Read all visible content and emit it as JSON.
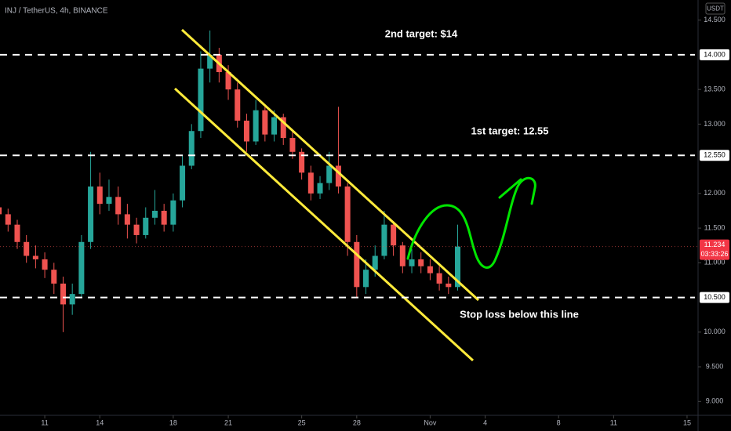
{
  "chart_data": {
    "type": "candlestick",
    "title": "INJ / TetherUS, 4h, BINANCE",
    "currency": "USDT",
    "x": [
      -2.5,
      -2,
      -1.5,
      -1,
      -0.5,
      0,
      0.5,
      1,
      1.5,
      2,
      2.5,
      3,
      3.5,
      4,
      4.5,
      5,
      5.5,
      6,
      6.5,
      7,
      7.5,
      8,
      8.5,
      9,
      9.5,
      10,
      10.5,
      11,
      11.5,
      12,
      12.5,
      13,
      13.5,
      14,
      14.5,
      15,
      15.5,
      16,
      16.5,
      17,
      17.5,
      18,
      18.5,
      19,
      19.5,
      20,
      20.5,
      21,
      21.5,
      22,
      22.5
    ],
    "open": [
      11.8,
      11.7,
      11.55,
      11.3,
      11.1,
      11.05,
      10.9,
      10.7,
      10.4,
      10.55,
      11.3,
      12.1,
      11.85,
      11.95,
      11.7,
      11.55,
      11.4,
      11.65,
      11.75,
      11.55,
      11.9,
      12.4,
      12.9,
      13.8,
      14,
      13.75,
      13.5,
      13.05,
      12.75,
      13.2,
      12.85,
      13.1,
      12.8,
      12.6,
      12.3,
      12,
      12.15,
      12.4,
      12.1,
      11.3,
      10.65,
      10.9,
      11.1,
      11.55,
      11.25,
      10.95,
      11.05,
      10.95,
      10.85,
      10.7,
      10.65
    ],
    "high": [
      11.9,
      11.78,
      11.62,
      11.4,
      11.25,
      11.15,
      11,
      10.8,
      10.7,
      11.4,
      12.6,
      12.3,
      12.2,
      12.1,
      11.85,
      11.65,
      11.8,
      12.05,
      11.85,
      12,
      12.55,
      13,
      14.05,
      14.35,
      14.1,
      13.85,
      13.6,
      13.15,
      13.35,
      13.25,
      13.2,
      13.15,
      12.9,
      12.65,
      12.4,
      12.25,
      12.6,
      13.25,
      12.15,
      11.4,
      11.05,
      11.25,
      11.75,
      11.6,
      11.3,
      11.2,
      11.15,
      11.05,
      10.95,
      10.8,
      11.55
    ],
    "low": [
      11.62,
      11.45,
      11.2,
      11,
      10.92,
      10.78,
      10.55,
      10,
      10.25,
      10.5,
      11.2,
      11.7,
      11.75,
      11.55,
      11.35,
      11.28,
      11.35,
      11.55,
      11.45,
      11.45,
      11.8,
      12.35,
      12.8,
      13.6,
      13.6,
      13.35,
      12.95,
      12.6,
      12.7,
      12.75,
      12.75,
      12.7,
      12.5,
      12.2,
      11.9,
      11.92,
      12.05,
      12,
      11.1,
      10.5,
      10.55,
      10.8,
      11.05,
      11.1,
      10.85,
      10.85,
      10.85,
      10.75,
      10.6,
      10.55,
      10.6
    ],
    "close": [
      11.7,
      11.55,
      11.3,
      11.1,
      11.05,
      10.9,
      10.7,
      10.4,
      10.55,
      11.3,
      12.1,
      11.85,
      11.95,
      11.7,
      11.55,
      11.4,
      11.65,
      11.75,
      11.55,
      11.9,
      12.4,
      12.9,
      13.8,
      14,
      13.75,
      13.5,
      13.05,
      12.75,
      13.2,
      12.85,
      13.1,
      12.8,
      12.6,
      12.3,
      12,
      12.15,
      12.4,
      12.1,
      11.3,
      10.65,
      10.9,
      11.1,
      11.55,
      11.25,
      10.95,
      11.05,
      10.95,
      10.85,
      10.7,
      10.65,
      11.234
    ],
    "up_color": "#26a69a",
    "down_color": "#ef5350",
    "xlim": [
      -2.44,
      35.6
    ],
    "xticks": [
      {
        "value": 0,
        "label": "11"
      },
      {
        "value": 3,
        "label": "14"
      },
      {
        "value": 7,
        "label": "18"
      },
      {
        "value": 10,
        "label": "21"
      },
      {
        "value": 14,
        "label": "25"
      },
      {
        "value": 17,
        "label": "28"
      },
      {
        "value": 21,
        "label": "Nov"
      },
      {
        "value": 24,
        "label": "4"
      },
      {
        "value": 28,
        "label": "8"
      },
      {
        "value": 31,
        "label": "11"
      },
      {
        "value": 35,
        "label": "15"
      }
    ],
    "ylim": [
      8.8,
      14.79
    ],
    "yticks": [
      {
        "value": 14.5,
        "label": "14.500"
      },
      {
        "value": 13.5,
        "label": "13.500"
      },
      {
        "value": 13,
        "label": "13.000"
      },
      {
        "value": 12,
        "label": "12.000"
      },
      {
        "value": 11.5,
        "label": "11.500"
      },
      {
        "value": 11,
        "label": "11.000"
      },
      {
        "value": 10,
        "label": "10.000"
      },
      {
        "value": 9.5,
        "label": "9.500"
      },
      {
        "value": 9,
        "label": "9.000"
      }
    ],
    "levels": [
      {
        "value": 14,
        "label": "14.000"
      },
      {
        "value": 12.55,
        "label": "12.550"
      },
      {
        "value": 10.5,
        "label": "10.500"
      }
    ],
    "last_price": 11.234,
    "countdown": "03:33:26",
    "annotations": [
      "2nd target: $14",
      "1st target: 12.55",
      "Stop loss below this line"
    ]
  }
}
